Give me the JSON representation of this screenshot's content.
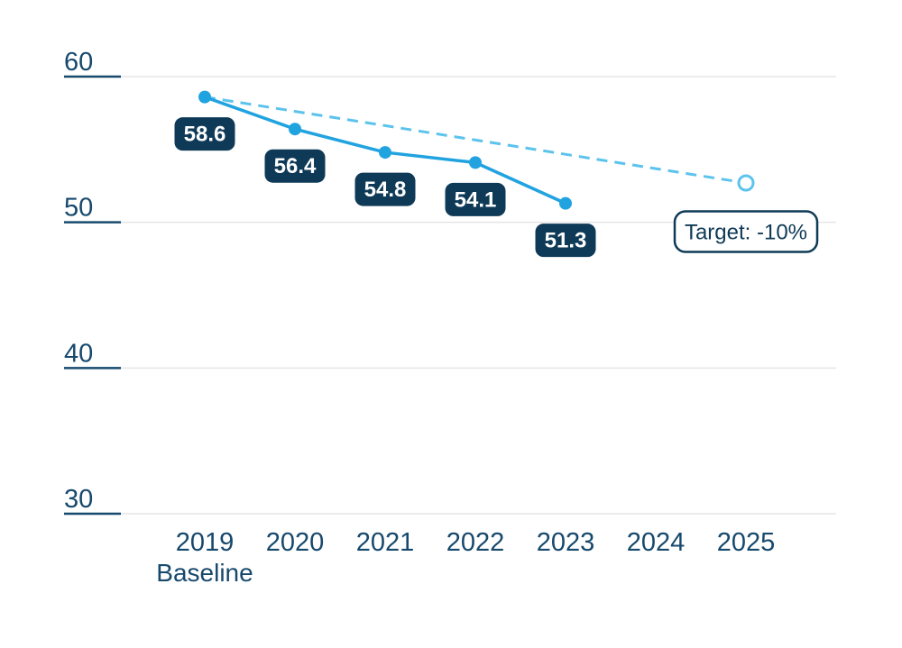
{
  "chart_data": {
    "type": "line",
    "title": "",
    "categories": [
      "2019",
      "2020",
      "2021",
      "2022",
      "2023",
      "2024",
      "2025"
    ],
    "category_sublabels": [
      "Baseline",
      "",
      "",
      "",
      "",
      "",
      ""
    ],
    "series": [
      {
        "name": "actual-trend",
        "style": "solid",
        "color": "#21a3e0",
        "values": [
          58.6,
          56.4,
          54.8,
          54.1,
          51.3,
          null,
          null
        ],
        "point_labels": [
          "58.6",
          "56.4",
          "54.8",
          "54.1",
          "51.3",
          "",
          ""
        ]
      },
      {
        "name": "target-path",
        "style": "dashed",
        "color": "#5cc3ec",
        "values": [
          58.6,
          null,
          null,
          null,
          null,
          null,
          52.7
        ],
        "end_marker": "open-circle"
      }
    ],
    "yticks": [
      "60",
      "50",
      "40",
      "30"
    ],
    "ytick_values": [
      60,
      50,
      40,
      30
    ],
    "ylim": [
      30,
      62
    ],
    "grid": true,
    "legend": "none",
    "annotation": {
      "text": "Target: -10%",
      "category": "2025",
      "value": 52.7
    }
  },
  "colors": {
    "navy_box": "#0f3a57",
    "axis_text": "#17496d",
    "solid_line": "#21a3e0",
    "dashed_line": "#5cc3ec",
    "gridline": "#e5e5e5",
    "point_label_text": "#ffffff",
    "annotation_bg": "#ffffff",
    "background": "#ffffff"
  }
}
